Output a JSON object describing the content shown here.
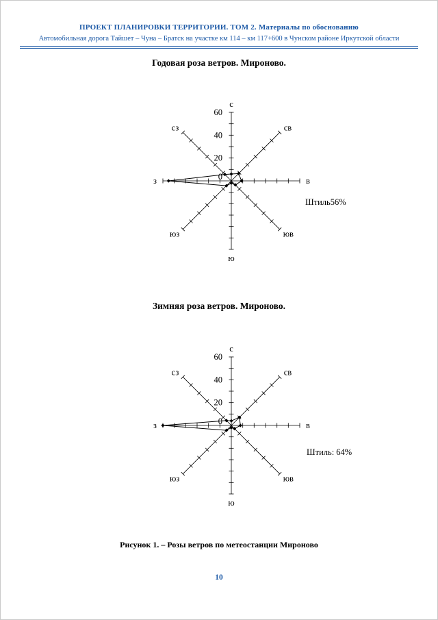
{
  "theme": {
    "accent_color": "#1c59a6"
  },
  "header": {
    "line1": "ПРОЕКТ ПЛАНИРОВКИ ТЕРРИТОРИИ. ТОМ 2. Материалы по обоснованию",
    "line2": "Автомобильная дорога Тайшет – Чуна – Братск на участке км 114 – км 117+600 в Чунском районе Иркутской области"
  },
  "figure1": {
    "title": "Годовая роза ветров. Мироново.",
    "calm_label": "Штиль56%"
  },
  "figure2": {
    "title": "Зимняя роза ветров. Мироново.",
    "calm_label": "Штиль: 64%"
  },
  "caption": "Рисунок 1. – Розы ветров по метеостанции Мироново",
  "page_number": "10",
  "chart_data": [
    {
      "type": "radar",
      "name": "annual-wind-rose",
      "title": "Годовая роза ветров. Мироново.",
      "directions": [
        "с",
        "св",
        "в",
        "юв",
        "ю",
        "юз",
        "з",
        "сз"
      ],
      "values": [
        6,
        9,
        9,
        5,
        2,
        6,
        55,
        8
      ],
      "scale_ticks": [
        0,
        20,
        40,
        60
      ],
      "tick_step": 10,
      "ylim": [
        0,
        60
      ],
      "calm_label": "Штиль56%",
      "grid": "radial-ticks",
      "legend": "none"
    },
    {
      "type": "radar",
      "name": "winter-wind-rose",
      "title": "Зимняя роза ветров. Мироново.",
      "directions": [
        "с",
        "св",
        "в",
        "юв",
        "ю",
        "юз",
        "з",
        "сз"
      ],
      "values": [
        4,
        10,
        8,
        4,
        2,
        6,
        60,
        6
      ],
      "scale_ticks": [
        0,
        20,
        40,
        60
      ],
      "tick_step": 10,
      "ylim": [
        0,
        60
      ],
      "calm_label": "Штиль: 64%",
      "grid": "radial-ticks",
      "legend": "none"
    }
  ]
}
